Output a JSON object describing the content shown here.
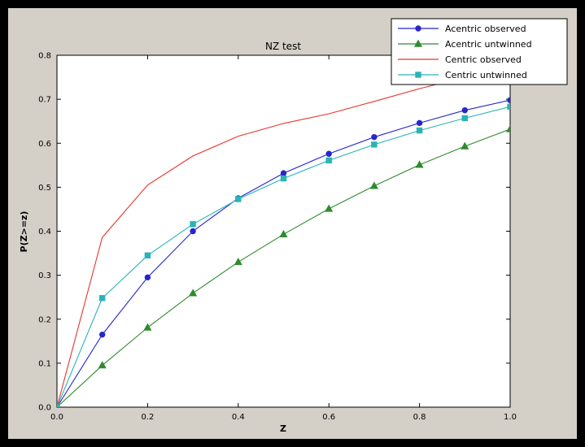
{
  "figure": {
    "background": "#000000",
    "canvas_background": "#d4d0c8",
    "axes_background": "#ffffff"
  },
  "chart_data": {
    "type": "line",
    "title": "NZ test",
    "xlabel": "Z",
    "ylabel": "P(Z>=z)",
    "xlim": [
      0.0,
      1.0
    ],
    "ylim": [
      0.0,
      0.8
    ],
    "xticks": [
      0.0,
      0.2,
      0.4,
      0.6,
      0.8,
      1.0
    ],
    "yticks": [
      0.0,
      0.1,
      0.2,
      0.3,
      0.4,
      0.5,
      0.6,
      0.7,
      0.8
    ],
    "grid": false,
    "legend_position": "upper right",
    "x": [
      0.0,
      0.1,
      0.2,
      0.3,
      0.4,
      0.5,
      0.6,
      0.7,
      0.8,
      0.9,
      1.0
    ],
    "series": [
      {
        "name": "Acentric observed",
        "color": "#2626cc",
        "marker": "circle",
        "values": [
          0.0,
          0.165,
          0.295,
          0.4,
          0.475,
          0.532,
          0.576,
          0.614,
          0.646,
          0.675,
          0.698
        ]
      },
      {
        "name": "Acentric untwinned",
        "color": "#2e8b2e",
        "marker": "triangle",
        "values": [
          0.0,
          0.095,
          0.181,
          0.259,
          0.33,
          0.393,
          0.451,
          0.503,
          0.551,
          0.593,
          0.632
        ]
      },
      {
        "name": "Centric observed",
        "color": "#e6352b",
        "marker": "none",
        "values": [
          0.0,
          0.386,
          0.505,
          0.571,
          0.616,
          0.645,
          0.667,
          0.695,
          0.724,
          0.75,
          0.766
        ]
      },
      {
        "name": "Centric untwinned",
        "color": "#2ab4b4",
        "marker": "square",
        "values": [
          0.0,
          0.248,
          0.345,
          0.416,
          0.473,
          0.52,
          0.561,
          0.597,
          0.629,
          0.657,
          0.683
        ]
      }
    ]
  }
}
